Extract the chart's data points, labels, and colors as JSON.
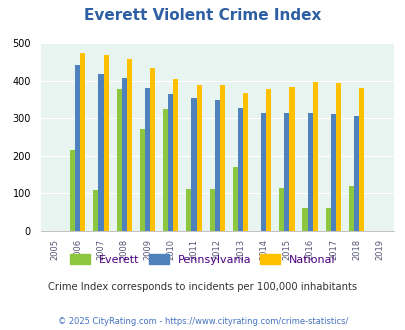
{
  "title": "Everett Violent Crime Index",
  "years": [
    2005,
    2006,
    2007,
    2008,
    2009,
    2010,
    2011,
    2012,
    2013,
    2014,
    2015,
    2016,
    2017,
    2018,
    2019
  ],
  "everett": [
    0,
    215,
    108,
    378,
    271,
    325,
    112,
    112,
    170,
    0,
    115,
    60,
    60,
    120,
    0
  ],
  "pennsylvania": [
    0,
    440,
    417,
    408,
    380,
    365,
    354,
    348,
    328,
    314,
    314,
    314,
    310,
    305,
    0
  ],
  "national": [
    0,
    473,
    467,
    456,
    432,
    405,
    388,
    388,
    367,
    378,
    384,
    397,
    394,
    380,
    0
  ],
  "colors": {
    "everett": "#8dc63f",
    "pennsylvania": "#4f81bd",
    "national": "#ffc000"
  },
  "bg_color": "#e8f4f0",
  "ylim": [
    0,
    500
  ],
  "subtitle": "Crime Index corresponds to incidents per 100,000 inhabitants",
  "footer": "© 2025 CityRating.com - https://www.cityrating.com/crime-statistics/",
  "title_color": "#2e5fa3",
  "subtitle_color": "#333333",
  "footer_color": "#4472c4",
  "legend_color": "#4b0082"
}
